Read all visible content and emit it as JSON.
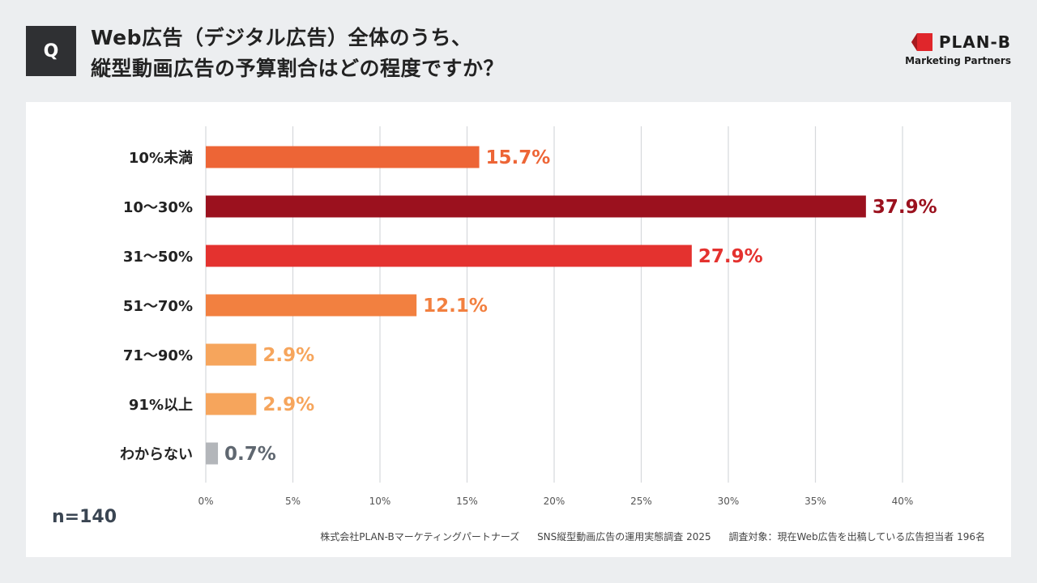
{
  "badge": "Q",
  "question": {
    "line1": "Web広告（デジタル広告）全体のうち、",
    "line2": "縦型動画広告の予算割合はどの程度ですか？"
  },
  "logo": {
    "name": "PLAN-B",
    "tagline": "Marketing Partners",
    "icon": "plan-b-logo-icon",
    "color": "#e0262b"
  },
  "sample_size": "n=140",
  "source": {
    "company": "株式会社PLAN-Bマーケティングパートナーズ",
    "survey": "SNS縦型動画広告の運用実態調査 2025",
    "target": "調査対象：現在Web広告を出稿している広告担当者 196名"
  },
  "chart_data": {
    "type": "bar",
    "orientation": "horizontal",
    "categories": [
      "10%未満",
      "10〜30%",
      "31〜50%",
      "51〜70%",
      "71〜90%",
      "91%以上",
      "わからない"
    ],
    "values": [
      15.7,
      37.9,
      27.9,
      12.1,
      2.9,
      2.9,
      0.7
    ],
    "value_labels": [
      "15.7%",
      "37.9%",
      "27.9%",
      "12.1%",
      "2.9%",
      "2.9%",
      "0.7%"
    ],
    "colors": [
      "#ed6536",
      "#9b111e",
      "#e4322f",
      "#f28040",
      "#f6a55c",
      "#f6a55c",
      "#b3b6ba"
    ],
    "xlim": [
      0,
      40
    ],
    "xticks": [
      0,
      5,
      10,
      15,
      20,
      25,
      30,
      35,
      40
    ],
    "xtick_labels": [
      "0%",
      "5%",
      "10%",
      "15%",
      "20%",
      "25%",
      "30%",
      "35%",
      "40%"
    ],
    "grid": true,
    "title": "",
    "xlabel": "",
    "ylabel": ""
  }
}
